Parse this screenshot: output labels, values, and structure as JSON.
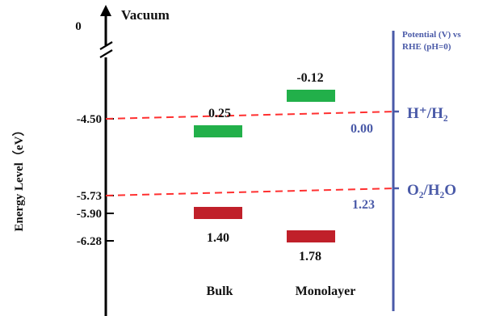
{
  "colors": {
    "axis": "#000000",
    "potential": "#4a5aa8",
    "dashed": "#ff3030",
    "cb": "#22b04a",
    "vb": "#c0202a"
  },
  "energy_axis": {
    "label": "Energy Level（eV）",
    "vacuum_label": "Vacuum",
    "zero_label": "0",
    "tick_labels": [
      "-4.50",
      "-5.73",
      "-5.90",
      "-6.28"
    ]
  },
  "potential_axis": {
    "title_line1": "Potential (V) vs",
    "title_line2": "RHE (pH=0)",
    "h2_label": "H⁺/H₂",
    "h2_value": "0.00",
    "o2_label": "O₂/H₂O",
    "o2_value": "1.23"
  },
  "materials": {
    "bulk": {
      "name": "Bulk",
      "cb_label": "0.25",
      "vb_label": "1.40"
    },
    "monolayer": {
      "name": "Monolayer",
      "cb_label": "-0.12",
      "vb_label": "1.78"
    }
  }
}
